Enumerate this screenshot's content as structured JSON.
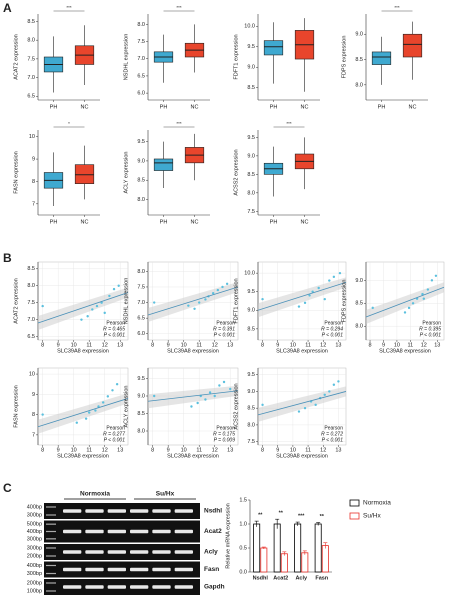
{
  "panels": [
    "A",
    "B",
    "C"
  ],
  "chart_data": [
    {
      "type": "box",
      "ylabel": "ACAT2 expression",
      "categories": [
        "PH",
        "NC"
      ],
      "significance": "***",
      "ylim": [
        6.4,
        8.7
      ],
      "yticks": [
        6.5,
        {
          "value": 7,
          "label": "7.0"
        },
        7.5,
        {
          "value": 8,
          "label": "8.0"
        },
        8.5
      ],
      "boxes": [
        {
          "color": "#3fa9d0",
          "min": 6.6,
          "q1": 7.15,
          "median": 7.35,
          "q3": 7.55,
          "max": 8.1
        },
        {
          "color": "#e8452c",
          "min": 6.8,
          "q1": 7.35,
          "median": 7.6,
          "q3": 7.85,
          "max": 8.4
        }
      ]
    },
    {
      "type": "box",
      "ylabel": "NSDHL expression",
      "categories": [
        "PH",
        "NC"
      ],
      "significance": "***",
      "ylim": [
        5.8,
        8.3
      ],
      "yticks": [
        {
          "value": 6,
          "label": "6.0"
        },
        6.5,
        {
          "value": 7,
          "label": "7.0"
        },
        7.5,
        {
          "value": 8,
          "label": "8.0"
        }
      ],
      "boxes": [
        {
          "color": "#3fa9d0",
          "min": 6.3,
          "q1": 6.9,
          "median": 7.05,
          "q3": 7.2,
          "max": 7.7
        },
        {
          "color": "#e8452c",
          "min": 6.6,
          "q1": 7.05,
          "median": 7.25,
          "q3": 7.45,
          "max": 8.0
        }
      ]
    },
    {
      "type": "box",
      "ylabel": "FDFT1 expression",
      "categories": [
        "PH",
        "NC"
      ],
      "significance": null,
      "ylim": [
        8.2,
        10.3
      ],
      "yticks": [
        8.5,
        {
          "value": 9,
          "label": "9.0"
        },
        9.5,
        {
          "value": 10,
          "label": "10.0"
        }
      ],
      "boxes": [
        {
          "color": "#3fa9d0",
          "min": 8.6,
          "q1": 9.3,
          "median": 9.5,
          "q3": 9.65,
          "max": 10.1
        },
        {
          "color": "#e8452c",
          "min": 8.4,
          "q1": 9.2,
          "median": 9.55,
          "q3": 9.9,
          "max": 10.2
        }
      ]
    },
    {
      "type": "box",
      "ylabel": "FDPS expression",
      "categories": [
        "PH",
        "NC"
      ],
      "significance": "***",
      "ylim": [
        7.7,
        9.4
      ],
      "yticks": [
        {
          "value": 8,
          "label": "8.0"
        },
        8.5,
        {
          "value": 9,
          "label": "9.0"
        }
      ],
      "boxes": [
        {
          "color": "#3fa9d0",
          "min": 8.0,
          "q1": 8.4,
          "median": 8.55,
          "q3": 8.65,
          "max": 8.95
        },
        {
          "color": "#e8452c",
          "min": 8.1,
          "q1": 8.55,
          "median": 8.8,
          "q3": 9.0,
          "max": 9.25
        }
      ]
    },
    {
      "type": "box",
      "ylabel": "FASN expression",
      "categories": [
        "PH",
        "NC"
      ],
      "significance": "*",
      "ylim": [
        6.5,
        10.3
      ],
      "yticks": [
        7,
        8,
        9,
        10
      ],
      "boxes": [
        {
          "color": "#3fa9d0",
          "min": 6.9,
          "q1": 7.7,
          "median": 8.05,
          "q3": 8.4,
          "max": 9.3
        },
        {
          "color": "#e8452c",
          "min": 7.2,
          "q1": 7.9,
          "median": 8.3,
          "q3": 8.75,
          "max": 9.6
        }
      ]
    },
    {
      "type": "box",
      "ylabel": "ACLY expression",
      "categories": [
        "PH",
        "NC"
      ],
      "significance": "***",
      "ylim": [
        7.6,
        9.8
      ],
      "yticks": [
        {
          "value": 8,
          "label": "8.0"
        },
        8.5,
        {
          "value": 9,
          "label": "9.0"
        },
        9.5
      ],
      "boxes": [
        {
          "color": "#3fa9d0",
          "min": 8.3,
          "q1": 8.75,
          "median": 8.95,
          "q3": 9.05,
          "max": 9.5
        },
        {
          "color": "#e8452c",
          "min": 8.5,
          "q1": 8.95,
          "median": 9.15,
          "q3": 9.35,
          "max": 9.7
        }
      ]
    },
    {
      "type": "box",
      "ylabel": "ACSS2 expression",
      "categories": [
        "PH",
        "NC"
      ],
      "significance": "***",
      "ylim": [
        7.4,
        9.7
      ],
      "yticks": [
        7.5,
        {
          "value": 8,
          "label": "8.0"
        },
        8.5,
        {
          "value": 9,
          "label": "9.0"
        },
        9.5
      ],
      "boxes": [
        {
          "color": "#3fa9d0",
          "min": 7.9,
          "q1": 8.5,
          "median": 8.65,
          "q3": 8.8,
          "max": 9.25
        },
        {
          "color": "#e8452c",
          "min": 8.1,
          "q1": 8.65,
          "median": 8.85,
          "q3": 9.05,
          "max": 9.5
        }
      ]
    },
    {
      "type": "scatter",
      "xlabel": "SLC39A8 expression",
      "ylabel": "ACAT2 expression",
      "color": "#5bc0de",
      "xlim": [
        7.7,
        13.5
      ],
      "xticks": [
        8,
        9,
        10,
        11,
        12,
        13
      ],
      "ylim": [
        6.4,
        8.7
      ],
      "yticks": [
        6.5,
        {
          "value": 7,
          "label": "7.0"
        },
        7.5,
        {
          "value": 8,
          "label": "8.0"
        },
        8.5
      ],
      "x": [
        11.2,
        11.8,
        12.3,
        10.9,
        12.6,
        11.5,
        12.0,
        10.5,
        8.0,
        12.9
      ],
      "values": [
        7.3,
        7.5,
        7.7,
        7.1,
        7.9,
        7.4,
        7.2,
        7.0,
        7.4,
        8.0
      ],
      "fit": {
        "x": [
          7.7,
          13.5
        ],
        "values": [
          6.9,
          7.8
        ]
      },
      "stats": [
        "Pearson",
        "R = 0.465",
        "P < 0.001"
      ]
    },
    {
      "type": "scatter",
      "xlabel": "SLC39A8 expression",
      "ylabel": "NSDHL expression",
      "color": "#5bc0de",
      "xlim": [
        7.7,
        13.5
      ],
      "xticks": [
        8,
        9,
        10,
        11,
        12,
        13
      ],
      "ylim": [
        5.8,
        8.3
      ],
      "yticks": [
        {
          "value": 6,
          "label": "6.0"
        },
        6.5,
        {
          "value": 7,
          "label": "7.0"
        },
        7.5,
        {
          "value": 8,
          "label": "8.0"
        }
      ],
      "x": [
        11.0,
        11.6,
        12.2,
        10.7,
        12.5,
        11.4,
        12.8,
        10.3,
        8.1,
        11.9
      ],
      "values": [
        7.0,
        7.2,
        7.4,
        6.8,
        7.5,
        7.1,
        7.6,
        6.9,
        7.0,
        7.3
      ],
      "fit": {
        "x": [
          7.7,
          13.5
        ],
        "values": [
          6.6,
          7.5
        ]
      },
      "stats": [
        "Pearson",
        "R = 0.391",
        "P < 0.001"
      ]
    },
    {
      "type": "scatter",
      "xlabel": "SLC39A8 expression",
      "ylabel": "FDFT1 expression",
      "color": "#5bc0de",
      "xlim": [
        7.7,
        13.5
      ],
      "xticks": [
        8,
        9,
        10,
        11,
        12,
        13
      ],
      "ylim": [
        8.2,
        10.3
      ],
      "yticks": [
        8.5,
        {
          "value": 9,
          "label": "9.0"
        },
        9.5,
        {
          "value": 10,
          "label": "10.0"
        }
      ],
      "x": [
        11.1,
        11.7,
        12.4,
        10.8,
        12.7,
        11.3,
        12.1,
        10.4,
        8.0,
        13.1
      ],
      "values": [
        9.4,
        9.6,
        9.8,
        9.2,
        9.9,
        9.5,
        9.3,
        9.1,
        9.3,
        10.0
      ],
      "fit": {
        "x": [
          7.7,
          13.5
        ],
        "values": [
          9.0,
          9.75
        ]
      },
      "stats": [
        "Pearson",
        "R = 0.294",
        "P < 0.001"
      ]
    },
    {
      "type": "scatter",
      "xlabel": "SLC39A8 expression",
      "ylabel": "FDPS expression",
      "color": "#5bc0de",
      "xlim": [
        7.7,
        13.5
      ],
      "xticks": [
        8,
        9,
        10,
        11,
        12,
        13
      ],
      "ylim": [
        7.7,
        9.4
      ],
      "yticks": [
        {
          "value": 8,
          "label": "8.0"
        },
        8.5,
        {
          "value": 9,
          "label": "9.0"
        }
      ],
      "x": [
        11.2,
        11.9,
        12.3,
        10.9,
        12.6,
        11.5,
        12.9,
        10.6,
        8.2,
        12.0
      ],
      "values": [
        8.5,
        8.7,
        8.8,
        8.4,
        9.0,
        8.6,
        9.1,
        8.3,
        8.4,
        8.6
      ],
      "fit": {
        "x": [
          7.7,
          13.5
        ],
        "values": [
          8.2,
          8.85
        ]
      },
      "stats": [
        "Pearson",
        "R = 0.395",
        "P < 0.001"
      ]
    },
    {
      "type": "scatter",
      "xlabel": "SLC39A8 expression",
      "ylabel": "FASN expression",
      "color": "#5bc0de",
      "xlim": [
        7.7,
        13.5
      ],
      "xticks": [
        8,
        9,
        10,
        11,
        12,
        13
      ],
      "ylim": [
        6.5,
        10.3
      ],
      "yticks": [
        7,
        8,
        9,
        10
      ],
      "x": [
        11.0,
        11.6,
        12.2,
        10.8,
        12.5,
        11.4,
        12.8,
        10.2,
        8.0,
        11.9
      ],
      "values": [
        8.1,
        8.4,
        8.9,
        7.8,
        9.2,
        8.2,
        9.5,
        7.6,
        8.0,
        8.6
      ],
      "fit": {
        "x": [
          7.7,
          13.5
        ],
        "values": [
          7.4,
          8.8
        ]
      },
      "stats": [
        "Pearson",
        "R = 0.277",
        "P < 0.001"
      ]
    },
    {
      "type": "scatter",
      "xlabel": "SLC39A8 expression",
      "ylabel": "ACLY expression",
      "color": "#5bc0de",
      "xlim": [
        7.7,
        13.5
      ],
      "xticks": [
        8,
        9,
        10,
        11,
        12,
        13
      ],
      "ylim": [
        7.6,
        9.8
      ],
      "yticks": [
        {
          "value": 8,
          "label": "8.0"
        },
        8.5,
        {
          "value": 9,
          "label": "9.0"
        },
        9.5
      ],
      "x": [
        11.1,
        11.7,
        12.3,
        10.9,
        12.6,
        11.4,
        12.0,
        10.5,
        8.1,
        13.0
      ],
      "values": [
        9.0,
        9.1,
        9.3,
        8.8,
        9.4,
        8.9,
        9.0,
        8.7,
        9.0,
        9.2
      ],
      "fit": {
        "x": [
          7.7,
          13.5
        ],
        "values": [
          8.85,
          9.15
        ]
      },
      "stats": [
        "Pearson",
        "R = 0.175",
        "P = 0.009"
      ]
    },
    {
      "type": "scatter",
      "xlabel": "SLC39A8 expression",
      "ylabel": "ACSS2 expression",
      "color": "#5bc0de",
      "xlim": [
        7.7,
        13.5
      ],
      "xticks": [
        8,
        9,
        10,
        11,
        12,
        13
      ],
      "ylim": [
        7.4,
        9.7
      ],
      "yticks": [
        7.5,
        {
          "value": 8,
          "label": "8.0"
        },
        8.5,
        {
          "value": 9,
          "label": "9.0"
        },
        9.5
      ],
      "x": [
        11.2,
        11.8,
        12.4,
        10.8,
        12.7,
        11.5,
        12.1,
        10.4,
        8.0,
        13.0
      ],
      "values": [
        8.7,
        8.8,
        9.0,
        8.5,
        9.2,
        8.6,
        8.9,
        8.4,
        8.6,
        9.3
      ],
      "fit": {
        "x": [
          7.7,
          13.5
        ],
        "values": [
          8.3,
          9.0
        ]
      },
      "stats": [
        "Pearson",
        "R = 0.272",
        "P < 0.001"
      ]
    },
    {
      "type": "bar",
      "ylabel": "Relative mRNA expression",
      "categories": [
        "Nsdhl",
        "Acat2",
        "Acly",
        "Fasn"
      ],
      "ylim": [
        0,
        1.5
      ],
      "yticks": [
        {
          "value": 0,
          "label": "0.0"
        },
        0.5,
        {
          "value": 1,
          "label": "1.0"
        },
        1.5
      ],
      "series": [
        {
          "name": "Normoxia",
          "color": "#000000",
          "values": [
            1.0,
            1.0,
            1.0,
            1.0
          ],
          "errors": [
            0.06,
            0.1,
            0.04,
            0.03
          ]
        },
        {
          "name": "Su/Hx",
          "color": "#e8302a",
          "values": [
            0.5,
            0.38,
            0.4,
            0.55
          ],
          "errors": [
            0.02,
            0.04,
            0.04,
            0.06
          ]
        }
      ],
      "significance": [
        "**",
        "**",
        "***",
        "**"
      ]
    }
  ],
  "blot": {
    "headers": [
      "Normoxia",
      "Su/Hx"
    ],
    "rows": [
      {
        "markers": [
          "400bp",
          "300bp"
        ],
        "label": "Nsdhl"
      },
      {
        "markers": [
          "500bp",
          "400bp",
          "300bp"
        ],
        "label": "Acat2"
      },
      {
        "markers": [
          "300bp",
          "200bp"
        ],
        "label": "Acly"
      },
      {
        "markers": [
          "400bp",
          "300bp"
        ],
        "label": "Fasn"
      },
      {
        "markers": [
          "200bp",
          "100bp"
        ],
        "label": "Gapdh"
      }
    ]
  }
}
